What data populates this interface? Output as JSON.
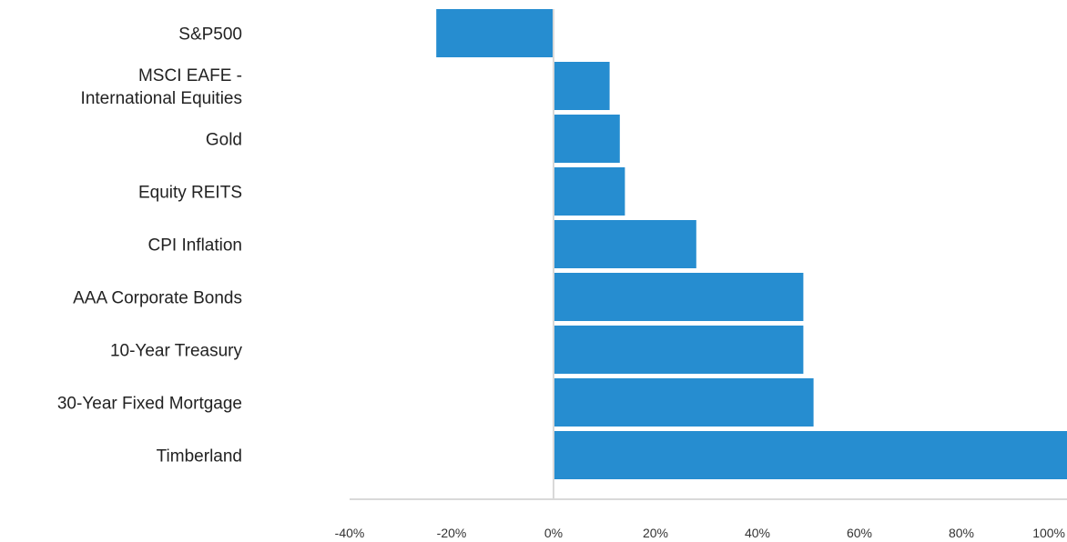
{
  "chart_data": {
    "type": "bar",
    "orientation": "horizontal",
    "categories": [
      [
        "S&P500"
      ],
      [
        "MSCI EAFE -",
        "International Equities"
      ],
      [
        "Gold"
      ],
      [
        "Equity REITS"
      ],
      [
        "CPI Inflation"
      ],
      [
        "AAA Corporate Bonds"
      ],
      [
        "10-Year Treasury"
      ],
      [
        "30-Year Fixed Mortgage"
      ],
      [
        "Timberland"
      ]
    ],
    "values": [
      -23,
      11,
      13,
      14,
      28,
      49,
      49,
      51,
      101
    ],
    "xlim": [
      -40,
      100
    ],
    "xticks": [
      -40,
      -20,
      0,
      20,
      40,
      60,
      80,
      100
    ],
    "tick_labels": [
      "-40%",
      "-20%",
      "0%",
      "20%",
      "40%",
      "60%",
      "80%",
      "100%"
    ],
    "bar_color": "#268dd0",
    "grid": false,
    "legend": "none",
    "title": "",
    "xlabel": "",
    "ylabel": ""
  }
}
